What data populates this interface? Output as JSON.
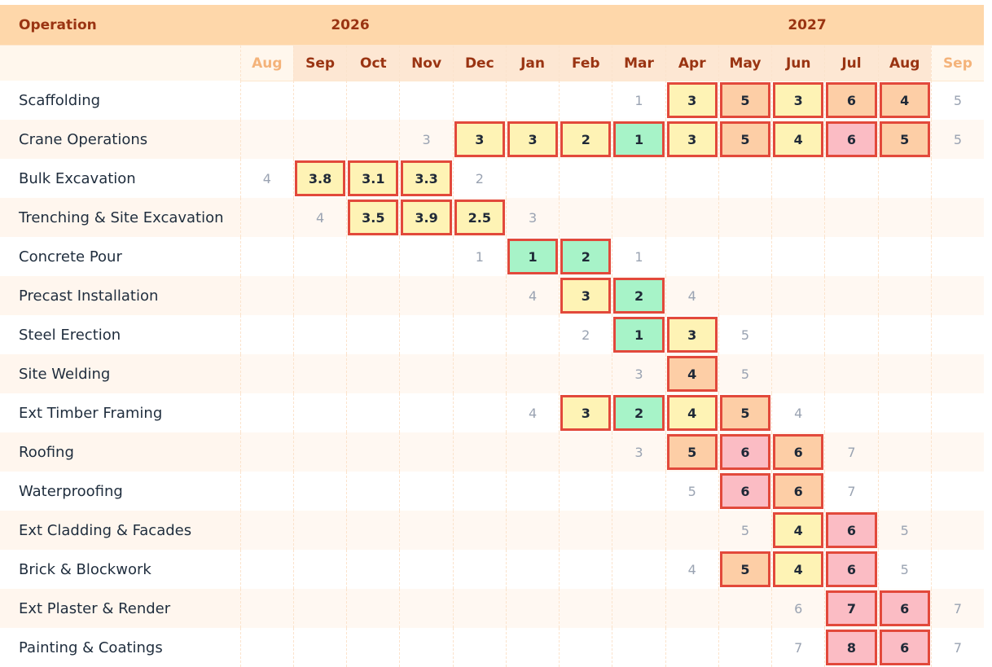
{
  "header": {
    "operation_label": "Operation",
    "years": [
      {
        "label": "2026"
      },
      {
        "label": "2027"
      }
    ],
    "months": [
      {
        "label": "Aug",
        "dim": true
      },
      {
        "label": "Sep",
        "dim": false
      },
      {
        "label": "Oct",
        "dim": false
      },
      {
        "label": "Nov",
        "dim": false
      },
      {
        "label": "Dec",
        "dim": false
      },
      {
        "label": "Jan",
        "dim": false
      },
      {
        "label": "Feb",
        "dim": false
      },
      {
        "label": "Mar",
        "dim": false
      },
      {
        "label": "Apr",
        "dim": false
      },
      {
        "label": "May",
        "dim": false
      },
      {
        "label": "Jun",
        "dim": false
      },
      {
        "label": "Jul",
        "dim": false
      },
      {
        "label": "Aug",
        "dim": false
      },
      {
        "label": "Sep",
        "dim": true
      }
    ]
  },
  "rows": [
    {
      "name": "Scaffolding",
      "cells": [
        "",
        "",
        "",
        "",
        "",
        "",
        "",
        "1",
        "3|y",
        "5|o",
        "3|y",
        "6|o",
        "4|o",
        "5"
      ]
    },
    {
      "name": "Crane Operations",
      "cells": [
        "",
        "",
        "",
        "3",
        "3|y",
        "3|y",
        "2|y",
        "1|g",
        "3|y",
        "5|o",
        "4|y",
        "6|r",
        "5|o",
        "5"
      ]
    },
    {
      "name": "Bulk Excavation",
      "cells": [
        "4",
        "3.8|y",
        "3.1|y",
        "3.3|y",
        "2",
        "",
        "",
        "",
        "",
        "",
        "",
        "",
        "",
        ""
      ]
    },
    {
      "name": "Trenching & Site Excavation",
      "cells": [
        "",
        "4",
        "3.5|y",
        "3.9|y",
        "2.5|y",
        "3",
        "",
        "",
        "",
        "",
        "",
        "",
        "",
        ""
      ]
    },
    {
      "name": "Concrete Pour",
      "cells": [
        "",
        "",
        "",
        "",
        "1",
        "1|g",
        "2|g",
        "1",
        "",
        "",
        "",
        "",
        "",
        ""
      ]
    },
    {
      "name": "Precast Installation",
      "cells": [
        "",
        "",
        "",
        "",
        "",
        "4",
        "3|y",
        "2|g",
        "4",
        "",
        "",
        "",
        "",
        ""
      ]
    },
    {
      "name": "Steel Erection",
      "cells": [
        "",
        "",
        "",
        "",
        "",
        "",
        "2",
        "1|g",
        "3|y",
        "5",
        "",
        "",
        "",
        ""
      ]
    },
    {
      "name": "Site Welding",
      "cells": [
        "",
        "",
        "",
        "",
        "",
        "",
        "",
        "3",
        "4|o",
        "5",
        "",
        "",
        "",
        ""
      ]
    },
    {
      "name": "Ext Timber Framing",
      "cells": [
        "",
        "",
        "",
        "",
        "",
        "4",
        "3|y",
        "2|g",
        "4|y",
        "5|o",
        "4",
        "",
        "",
        ""
      ]
    },
    {
      "name": "Roofing",
      "cells": [
        "",
        "",
        "",
        "",
        "",
        "",
        "",
        "3",
        "5|o",
        "6|r",
        "6|o",
        "7",
        "",
        ""
      ]
    },
    {
      "name": "Waterproofing",
      "cells": [
        "",
        "",
        "",
        "",
        "",
        "",
        "",
        "",
        "5",
        "6|r",
        "6|o",
        "7",
        "",
        ""
      ]
    },
    {
      "name": "Ext Cladding & Facades",
      "cells": [
        "",
        "",
        "",
        "",
        "",
        "",
        "",
        "",
        "",
        "5",
        "4|y",
        "6|r",
        "5",
        ""
      ]
    },
    {
      "name": "Brick & Blockwork",
      "cells": [
        "",
        "",
        "",
        "",
        "",
        "",
        "",
        "",
        "4",
        "5|o",
        "4|y",
        "6|r",
        "5",
        ""
      ]
    },
    {
      "name": "Ext Plaster & Render",
      "cells": [
        "",
        "",
        "",
        "",
        "",
        "",
        "",
        "",
        "",
        "",
        "6",
        "7|r",
        "6|r",
        "7"
      ]
    },
    {
      "name": "Painting & Coatings",
      "cells": [
        "",
        "",
        "",
        "",
        "",
        "",
        "",
        "",
        "",
        "",
        "7",
        "8|r",
        "6|r",
        "7"
      ]
    }
  ],
  "colors": {
    "header_bg": "#fed7aa",
    "header_text": "#9a3412",
    "highlight_border": "#e2493b",
    "level_green": "#a7f3c8",
    "level_yellow": "#fef3b5",
    "level_orange": "#fdcea6",
    "level_red": "#fbbcc4"
  }
}
